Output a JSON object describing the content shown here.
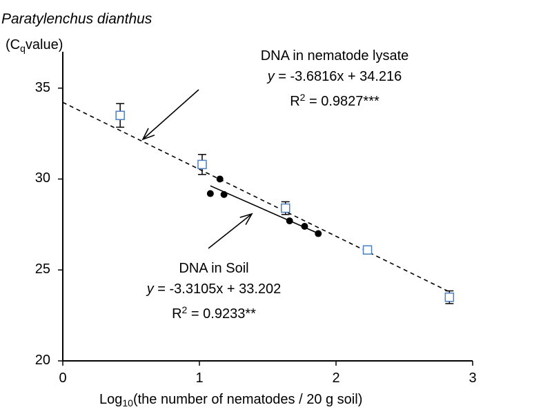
{
  "chart_data": {
    "type": "scatter",
    "title": "Paratylenchus dianthus",
    "ylabel": "(Cqvalue)",
    "xlabel": "Log10(the number of nematodes / 20 g soil)",
    "xlim": [
      0,
      3
    ],
    "ylim": [
      20,
      37
    ],
    "x_ticks": [
      "0",
      "1",
      "2",
      "3"
    ],
    "y_ticks": [
      "20",
      "25",
      "30",
      "35"
    ],
    "series": [
      {
        "marker": "open-square",
        "color": "#4a7fc1",
        "points": [
          {
            "x": 0.42,
            "y": 33.5,
            "err": 0.65
          },
          {
            "x": 1.02,
            "y": 30.8,
            "err": 0.55
          },
          {
            "x": 1.63,
            "y": 28.4,
            "err": 0.35
          },
          {
            "x": 2.23,
            "y": 26.1,
            "err": 0.2
          },
          {
            "x": 2.83,
            "y": 23.5,
            "err": 0.35
          }
        ],
        "fit": {
          "slope": -3.6816,
          "intercept": 34.216,
          "x_range": [
            0,
            2.83
          ],
          "style": "dashed"
        },
        "annotation": {
          "label": "DNA in nematode lysate",
          "equation": "-3.6816x + 34.216",
          "r2": "0.9827***"
        }
      },
      {
        "marker": "filled-circle",
        "color": "#000000",
        "points": [
          {
            "x": 1.08,
            "y": 29.2
          },
          {
            "x": 1.15,
            "y": 30.0
          },
          {
            "x": 1.18,
            "y": 29.15
          },
          {
            "x": 1.66,
            "y": 27.7
          },
          {
            "x": 1.77,
            "y": 27.4
          },
          {
            "x": 1.87,
            "y": 27.0
          }
        ],
        "fit": {
          "slope": -3.3105,
          "intercept": 33.202,
          "x_range": [
            1.08,
            1.87
          ],
          "style": "solid"
        },
        "annotation": {
          "label": "DNA in Soil",
          "equation": "-3.3105x + 33.202",
          "r2": "0.9233**"
        }
      }
    ]
  }
}
